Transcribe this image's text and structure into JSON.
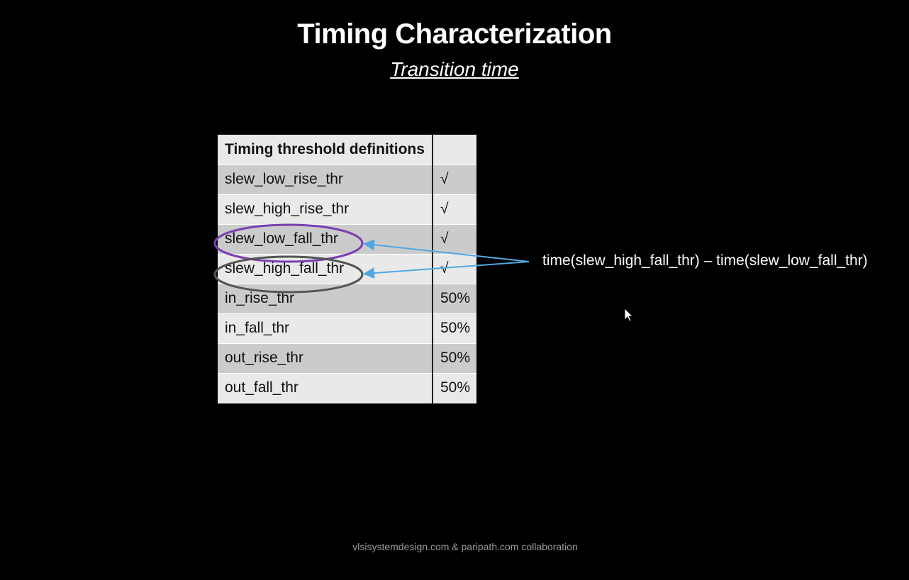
{
  "slide": {
    "title": "Timing Characterization",
    "subtitle": "Transition time"
  },
  "table": {
    "header": [
      "Timing threshold definitions",
      ""
    ],
    "rows": [
      {
        "name": "slew_low_rise_thr",
        "value": "√"
      },
      {
        "name": "slew_high_rise_thr",
        "value": "√"
      },
      {
        "name": "slew_low_fall_thr",
        "value": "√"
      },
      {
        "name": "slew_high_fall_thr",
        "value": "√"
      },
      {
        "name": "in_rise_thr",
        "value": "50%"
      },
      {
        "name": "in_fall_thr",
        "value": "50%"
      },
      {
        "name": "out_rise_thr",
        "value": "50%"
      },
      {
        "name": "out_fall_thr",
        "value": "50%"
      }
    ]
  },
  "annotation": {
    "formula": "time(slew_high_fall_thr) – time(slew_low_fall_thr)",
    "ellipse_low_color": "#7a3fb0",
    "ellipse_high_color": "#555555",
    "arrow_color": "#4fa8e0"
  },
  "footer": {
    "text": "vlsisystemdesign.com & paripath.com collaboration"
  },
  "icons": {
    "cursor": "mouse-pointer-icon"
  }
}
